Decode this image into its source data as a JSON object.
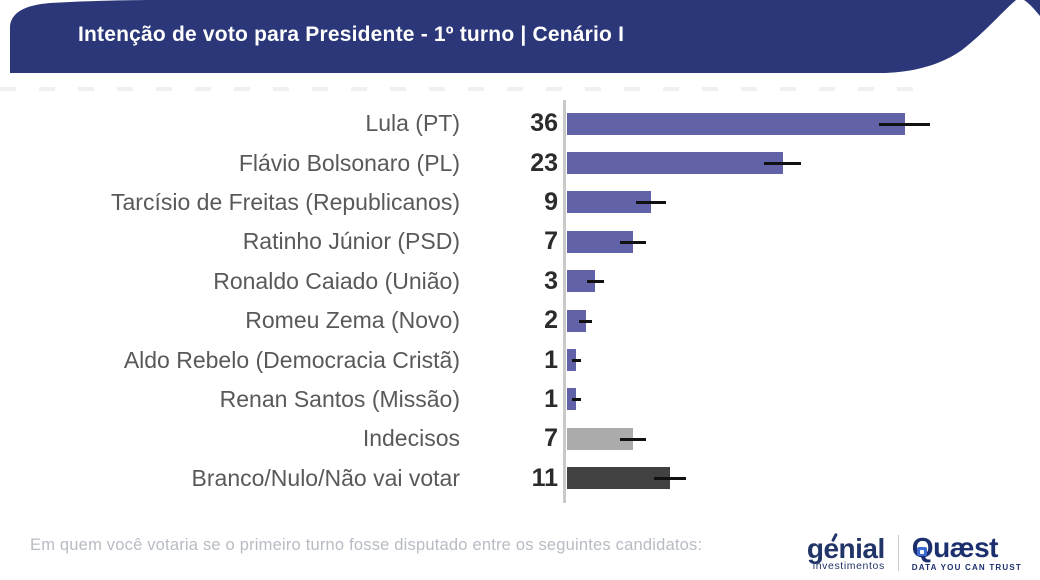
{
  "header": {
    "title": "Intenção de voto para Presidente - 1º turno | Cenário I",
    "background_color": "#2b3778",
    "text_color": "#ffffff"
  },
  "chart_data": {
    "type": "bar",
    "orientation": "horizontal",
    "title": "Intenção de voto para Presidente - 1º turno | Cenário I",
    "categories": [
      "Lula (PT)",
      "Flávio Bolsonaro (PL)",
      "Tarcísio de Freitas (Republicanos)",
      "Ratinho Júnior (PSD)",
      "Ronaldo Caiado (União)",
      "Romeu Zema (Novo)",
      "Aldo Rebelo (Democracia Cristã)",
      "Renan Santos (Missão)",
      "Indecisos",
      "Branco/Nulo/Não vai votar"
    ],
    "values": [
      36,
      23,
      9,
      7,
      3,
      2,
      1,
      1,
      7,
      11
    ],
    "moe": [
      2.7,
      2.0,
      1.6,
      1.4,
      0.9,
      0.7,
      0.5,
      0.5,
      1.4,
      1.7
    ],
    "bar_colors": [
      "#6162a8",
      "#6162a8",
      "#6162a8",
      "#6162a8",
      "#6162a8",
      "#6162a8",
      "#6162a8",
      "#6162a8",
      "#ababab",
      "#414141"
    ],
    "value_label_color": "#2b2b2b",
    "category_label_color": "#58595b",
    "axis_line_color": "#c9c9c9",
    "error_bar_color": "#111111",
    "xlim": [
      0,
      40
    ],
    "grid": false,
    "legend": false,
    "value_labels_position": "left-of-axis"
  },
  "footer": {
    "question": "Em quem você votaria se o primeiro turno fosse disputado entre os seguintes candidatos:"
  },
  "branding": {
    "genial": {
      "name": "genial",
      "subtitle": "investimentos",
      "color": "#223568"
    },
    "quaest": {
      "name": "Quæst",
      "tagline": "DATA YOU CAN TRUST",
      "color": "#1b2f6e",
      "icon_color": "#3d6ad1"
    }
  }
}
